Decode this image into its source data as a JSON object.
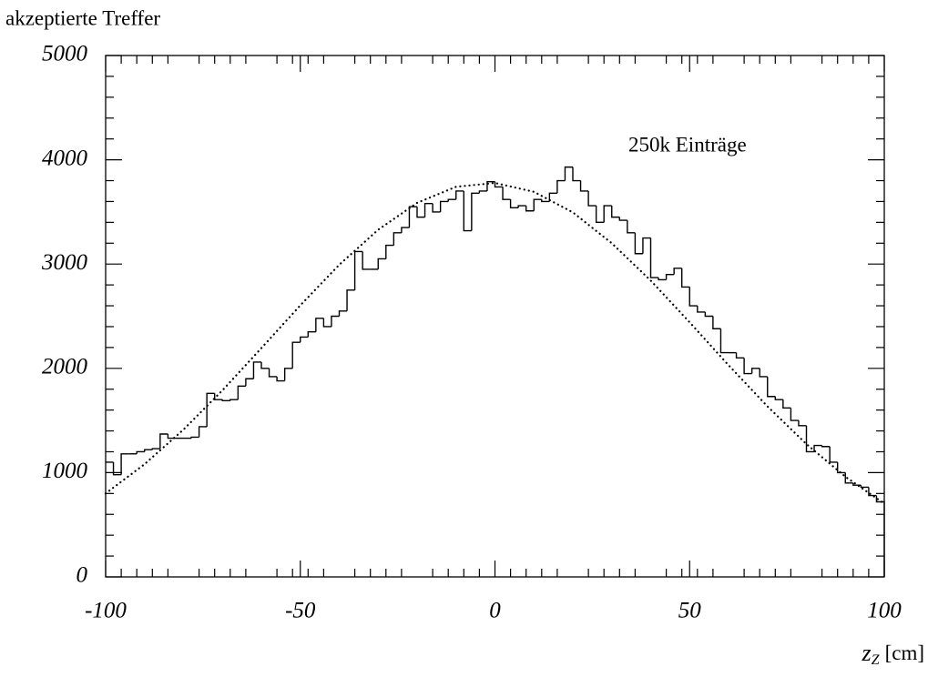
{
  "chart_data": {
    "type": "histogram",
    "y_label": "akzeptierte Treffer",
    "x_label": {
      "symbol": "z",
      "subscript": "Z",
      "unit": "[cm]"
    },
    "annotation": "250k Einträge",
    "color": "#000000",
    "bins": [
      -100,
      -98,
      -96,
      -94,
      -92,
      -90,
      -88,
      -86,
      -84,
      -82,
      -80,
      -78,
      -76,
      -74,
      -72,
      -70,
      -68,
      -66,
      -64,
      -62,
      -60,
      -58,
      -56,
      -54,
      -52,
      -50,
      -48,
      -46,
      -44,
      -42,
      -40,
      -38,
      -36,
      -34,
      -32,
      -30,
      -28,
      -26,
      -24,
      -22,
      -20,
      -18,
      -16,
      -14,
      -12,
      -10,
      -8,
      -6,
      -4,
      -2,
      0,
      2,
      4,
      6,
      8,
      10,
      12,
      14,
      16,
      18,
      20,
      22,
      24,
      26,
      28,
      30,
      32,
      34,
      36,
      38,
      40,
      42,
      44,
      46,
      48,
      50,
      52,
      54,
      56,
      58,
      60,
      62,
      64,
      66,
      68,
      70,
      72,
      74,
      76,
      78,
      80,
      82,
      84,
      86,
      88,
      90,
      92,
      94,
      96,
      98,
      100
    ],
    "values": [
      1100,
      980,
      1180,
      1180,
      1200,
      1220,
      1230,
      1370,
      1330,
      1330,
      1330,
      1340,
      1440,
      1760,
      1700,
      1690,
      1700,
      1830,
      1900,
      2060,
      2000,
      1920,
      1880,
      2000,
      2250,
      2300,
      2350,
      2480,
      2400,
      2500,
      2550,
      2750,
      3120,
      2950,
      2950,
      3050,
      3180,
      3300,
      3350,
      3550,
      3450,
      3580,
      3500,
      3600,
      3620,
      3700,
      3320,
      3680,
      3700,
      3790,
      3740,
      3620,
      3540,
      3560,
      3510,
      3620,
      3600,
      3680,
      3800,
      3930,
      3800,
      3700,
      3560,
      3400,
      3560,
      3450,
      3420,
      3300,
      3100,
      3250,
      2870,
      2850,
      2900,
      2960,
      2780,
      2600,
      2540,
      2500,
      2380,
      2150,
      2150,
      2100,
      1950,
      2000,
      1920,
      1730,
      1700,
      1620,
      1500,
      1450,
      1200,
      1260,
      1250,
      1100,
      1000,
      900,
      880,
      860,
      780,
      720
    ],
    "fit": {
      "style": "dotted",
      "x": [
        -100,
        -90,
        -80,
        -70,
        -60,
        -50,
        -40,
        -30,
        -20,
        -10,
        0,
        10,
        20,
        30,
        40,
        50,
        60,
        70,
        80,
        90,
        100
      ],
      "values": [
        800,
        1081,
        1413,
        1789,
        2194,
        2604,
        2993,
        3329,
        3587,
        3741,
        3778,
        3693,
        3496,
        3200,
        2842,
        2442,
        2030,
        1635,
        1274,
        961,
        703
      ]
    },
    "xlim": [
      -100,
      100
    ],
    "ylim": [
      0,
      5000
    ],
    "xticks": [
      -100,
      -50,
      0,
      50,
      100
    ],
    "yticks": [
      0,
      1000,
      2000,
      3000,
      4000,
      5000
    ]
  }
}
